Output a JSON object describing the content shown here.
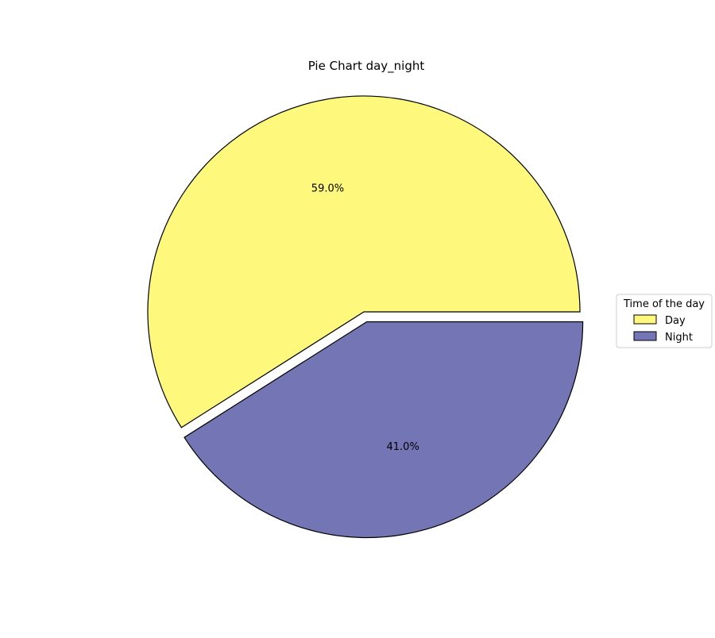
{
  "chart_data": {
    "type": "pie",
    "title": "Pie Chart day_night",
    "slices": [
      {
        "label": "Day",
        "value": 59.0,
        "pct_label": "59.0%",
        "color": "#FEF87C",
        "exploded": false
      },
      {
        "label": "Night",
        "value": 41.0,
        "pct_label": "41.0%",
        "color": "#7475B4",
        "exploded": true
      }
    ],
    "legend": {
      "title": "Time of the day",
      "placement": "right"
    }
  }
}
